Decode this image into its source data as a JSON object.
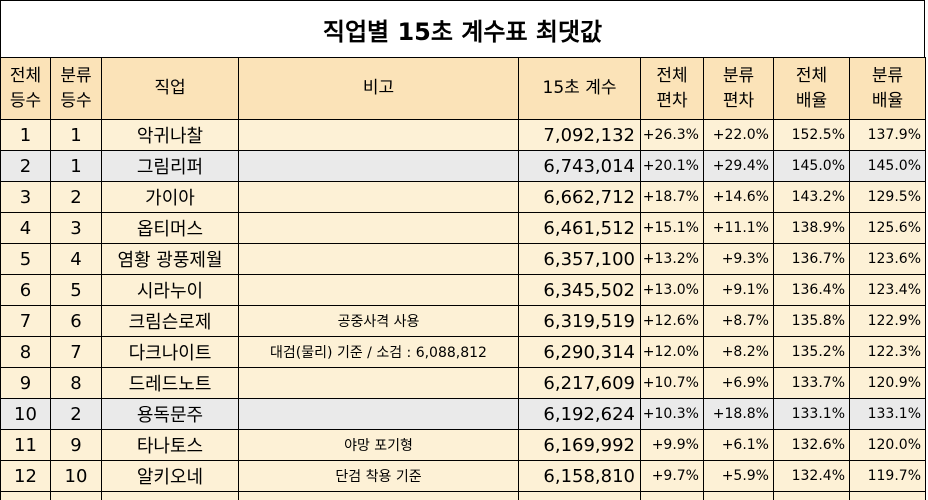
{
  "title": "직업별 15초 계수표 최댓값",
  "headers": {
    "rank_all": [
      "전체",
      "등수"
    ],
    "rank_cat": [
      "분류",
      "등수"
    ],
    "job": "직업",
    "note": "비고",
    "coef": "15초 계수",
    "dev_all": [
      "전체",
      "편차"
    ],
    "dev_cat": [
      "분류",
      "편차"
    ],
    "mult_all": [
      "전체",
      "배율"
    ],
    "mult_cat": [
      "분류",
      "배율"
    ]
  },
  "rows": [
    {
      "rank_all": "1",
      "rank_cat": "1",
      "job": "악귀나찰",
      "note": "",
      "coef": "7,092,132",
      "dev_all": "+26.3%",
      "dev_cat": "+22.0%",
      "mult_all": "152.5%",
      "mult_cat": "137.9%"
    },
    {
      "rank_all": "2",
      "rank_cat": "1",
      "job": "그림리퍼",
      "note": "",
      "coef": "6,743,014",
      "dev_all": "+20.1%",
      "dev_cat": "+29.4%",
      "mult_all": "145.0%",
      "mult_cat": "145.0%"
    },
    {
      "rank_all": "3",
      "rank_cat": "2",
      "job": "가이아",
      "note": "",
      "coef": "6,662,712",
      "dev_all": "+18.7%",
      "dev_cat": "+14.6%",
      "mult_all": "143.2%",
      "mult_cat": "129.5%"
    },
    {
      "rank_all": "4",
      "rank_cat": "3",
      "job": "옵티머스",
      "note": "",
      "coef": "6,461,512",
      "dev_all": "+15.1%",
      "dev_cat": "+11.1%",
      "mult_all": "138.9%",
      "mult_cat": "125.6%"
    },
    {
      "rank_all": "5",
      "rank_cat": "4",
      "job": "염황 광풍제월",
      "note": "",
      "coef": "6,357,100",
      "dev_all": "+13.2%",
      "dev_cat": "+9.3%",
      "mult_all": "136.7%",
      "mult_cat": "123.6%"
    },
    {
      "rank_all": "6",
      "rank_cat": "5",
      "job": "시라누이",
      "note": "",
      "coef": "6,345,502",
      "dev_all": "+13.0%",
      "dev_cat": "+9.1%",
      "mult_all": "136.4%",
      "mult_cat": "123.4%"
    },
    {
      "rank_all": "7",
      "rank_cat": "6",
      "job": "크림슨로제",
      "note": "공중사격 사용",
      "coef": "6,319,519",
      "dev_all": "+12.6%",
      "dev_cat": "+8.7%",
      "mult_all": "135.8%",
      "mult_cat": "122.9%"
    },
    {
      "rank_all": "8",
      "rank_cat": "7",
      "job": "다크나이트",
      "note": "대검(물리) 기준 / 소검 : 6,088,812",
      "coef": "6,290,314",
      "dev_all": "+12.0%",
      "dev_cat": "+8.2%",
      "mult_all": "135.2%",
      "mult_cat": "122.3%"
    },
    {
      "rank_all": "9",
      "rank_cat": "8",
      "job": "드레드노트",
      "note": "",
      "coef": "6,217,609",
      "dev_all": "+10.7%",
      "dev_cat": "+6.9%",
      "mult_all": "133.7%",
      "mult_cat": "120.9%"
    },
    {
      "rank_all": "10",
      "rank_cat": "2",
      "job": "용독문주",
      "note": "",
      "coef": "6,192,624",
      "dev_all": "+10.3%",
      "dev_cat": "+18.8%",
      "mult_all": "133.1%",
      "mult_cat": "133.1%"
    },
    {
      "rank_all": "11",
      "rank_cat": "9",
      "job": "타나토스",
      "note": "야망 포기형",
      "coef": "6,169,992",
      "dev_all": "+9.9%",
      "dev_cat": "+6.1%",
      "mult_all": "132.6%",
      "mult_cat": "120.0%"
    },
    {
      "rank_all": "12",
      "rank_cat": "10",
      "job": "알키오네",
      "note": "단검 착용 기준",
      "coef": "6,158,810",
      "dev_all": "+9.7%",
      "dev_cat": "+5.9%",
      "mult_all": "132.4%",
      "mult_cat": "119.7%"
    }
  ],
  "alt_rows": [
    1,
    9
  ],
  "colors": {
    "header_bg": "#fbe3b8",
    "row_bg": "#fdf1d6",
    "alt_row_bg": "#eaeaea",
    "border": "#000000"
  }
}
